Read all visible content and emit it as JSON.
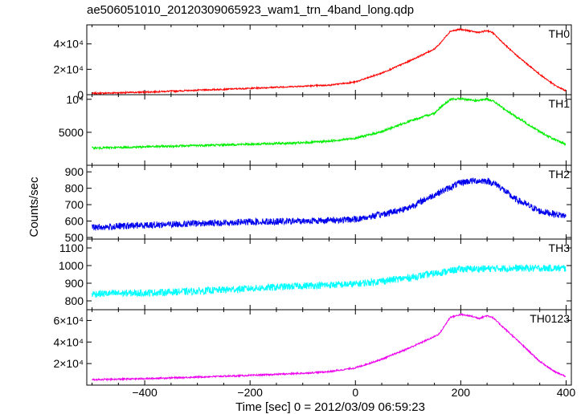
{
  "chart_data": {
    "type": "line",
    "title": "ae506051010_20120309065923_wam1_trn_4band_long.qdp",
    "xlabel": "Time [sec] 0 = 2012/03/09 06:59:23",
    "ylabel": "Counts/sec",
    "xlim": [
      -510,
      410
    ],
    "x_ticks": [
      -400,
      -200,
      0,
      200,
      400
    ],
    "x_tick_labels": [
      "−400",
      "−200",
      "0",
      "200",
      "400"
    ],
    "grid": false,
    "panels": [
      {
        "name": "TH0",
        "color": "#ff0000",
        "ylim": [
          0,
          55000
        ],
        "y_tick_labels": [
          {
            "value": 0,
            "label": "0"
          },
          {
            "value": 20000,
            "label": "2×10⁴"
          },
          {
            "value": 40000,
            "label": "4×10⁴"
          }
        ],
        "x": [
          -500,
          -400,
          -300,
          -200,
          -100,
          -50,
          0,
          50,
          100,
          150,
          160,
          180,
          200,
          220,
          235,
          250,
          260,
          300,
          350,
          380,
          400
        ],
        "y": [
          1000,
          2000,
          3500,
          5000,
          6700,
          7500,
          10000,
          17000,
          26000,
          36000,
          40000,
          50000,
          51500,
          50000,
          49000,
          50500,
          49000,
          33000,
          16000,
          7000,
          3000
        ],
        "noise": 0.01
      },
      {
        "name": "TH1",
        "color": "#00ee00",
        "ylim": [
          0,
          10700
        ],
        "y_tick_labels": [
          {
            "value": 5000,
            "label": "5000"
          },
          {
            "value": 10000,
            "label": "10⁴"
          }
        ],
        "x": [
          -500,
          -400,
          -300,
          -200,
          -100,
          -50,
          0,
          50,
          100,
          150,
          160,
          180,
          200,
          220,
          235,
          250,
          260,
          300,
          350,
          380,
          400
        ],
        "y": [
          2600,
          2800,
          3000,
          3200,
          3400,
          3650,
          4100,
          5100,
          6600,
          7900,
          8700,
          9950,
          10100,
          9850,
          9800,
          10050,
          9800,
          7600,
          5100,
          3800,
          3200
        ],
        "noise": 0.015
      },
      {
        "name": "TH2",
        "color": "#0000ee",
        "ylim": [
          490,
          940
        ],
        "y_tick_labels": [
          {
            "value": 500,
            "label": "500"
          },
          {
            "value": 600,
            "label": "600"
          },
          {
            "value": 700,
            "label": "700"
          },
          {
            "value": 800,
            "label": "800"
          },
          {
            "value": 900,
            "label": "900"
          }
        ],
        "x": [
          -500,
          -400,
          -300,
          -200,
          -100,
          0,
          50,
          100,
          150,
          200,
          220,
          250,
          270,
          300,
          350,
          400
        ],
        "y": [
          560,
          575,
          585,
          595,
          600,
          610,
          640,
          680,
          760,
          835,
          845,
          845,
          820,
          740,
          660,
          630
        ],
        "noise": 0.045
      },
      {
        "name": "TH3",
        "color": "#00ffff",
        "ylim": [
          750,
          1150
        ],
        "y_tick_labels": [
          {
            "value": 800,
            "label": "800"
          },
          {
            "value": 900,
            "label": "900"
          },
          {
            "value": 1000,
            "label": "1000"
          },
          {
            "value": 1100,
            "label": "1100"
          }
        ],
        "x": [
          -500,
          -400,
          -300,
          -200,
          -100,
          0,
          100,
          200,
          300,
          400
        ],
        "y": [
          840,
          845,
          855,
          870,
          885,
          895,
          930,
          980,
          985,
          985
        ],
        "noise": 0.05
      },
      {
        "name": "TH0123",
        "color": "#ee00ee",
        "ylim": [
          0,
          70000
        ],
        "y_tick_labels": [
          {
            "value": 20000,
            "label": "2×10⁴"
          },
          {
            "value": 40000,
            "label": "4×10⁴"
          },
          {
            "value": 60000,
            "label": "6×10⁴"
          }
        ],
        "x": [
          -500,
          -400,
          -300,
          -200,
          -100,
          -50,
          0,
          50,
          100,
          150,
          160,
          180,
          200,
          220,
          235,
          250,
          260,
          300,
          350,
          380,
          400
        ],
        "y": [
          5000,
          6000,
          7500,
          9000,
          11000,
          12500,
          16000,
          24000,
          34000,
          45000,
          48000,
          63000,
          65500,
          64000,
          62000,
          64500,
          63000,
          45000,
          22000,
          12000,
          8000
        ],
        "noise": 0.01
      }
    ]
  }
}
